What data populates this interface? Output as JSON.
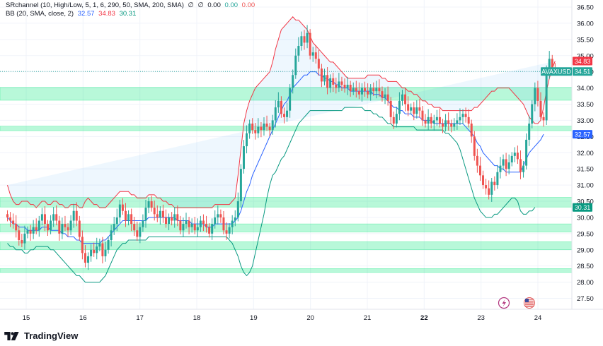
{
  "legend": {
    "indicator1_name": "SRchannel (10, High/Low, 5, 1, 6, 290, 50, SMA, 200, SMA)",
    "indicator1_marker1": "∅",
    "indicator1_marker2": "∅",
    "indicator1_v1": "0.00",
    "indicator1_v2": "0.00",
    "indicator1_v3": "0.00",
    "indicator2_name": "BB (20, SMA, close, 2)",
    "bb_basis": "32.57",
    "bb_upper": "34.83",
    "bb_lower": "30.31"
  },
  "brand": {
    "logo_text": "TradingView"
  },
  "colors": {
    "up": "#26a69a",
    "down": "#ef5350",
    "bb_basis": "#2962ff",
    "bb_upper": "#f23645",
    "bb_lower": "#089981",
    "bb_fill": "#2196f3",
    "sr_zone": "#00e676"
  },
  "chart_data": {
    "type": "candlestick",
    "symbol": "AVAXUSD",
    "ylim": [
      27.35,
      36.6
    ],
    "y_ticks": [
      "36.50",
      "36.00",
      "35.50",
      "35.00",
      "34.50",
      "34.00",
      "33.50",
      "33.00",
      "32.50",
      "32.00",
      "31.50",
      "31.00",
      "30.50",
      "30.00",
      "29.50",
      "29.00",
      "28.50",
      "28.00",
      "27.50"
    ],
    "x_ticks": [
      {
        "label": "15",
        "x": 15
      },
      {
        "label": "16",
        "x": 16
      },
      {
        "label": "17",
        "x": 17
      },
      {
        "label": "18",
        "x": 18
      },
      {
        "label": "19",
        "x": 19
      },
      {
        "label": "20",
        "x": 20
      },
      {
        "label": "21",
        "x": 21
      },
      {
        "label": "22",
        "x": 22
      },
      {
        "label": "23",
        "x": 23
      },
      {
        "label": "24",
        "x": 24
      }
    ],
    "price_labels": [
      {
        "text": "34.83",
        "value": 34.83,
        "color": "#f23645"
      },
      {
        "text": "AVAXUSD",
        "value": 34.51,
        "color": "#26a69a"
      },
      {
        "text": "34.51",
        "value": 34.51,
        "color": "#26a69a"
      },
      {
        "text": "32.57",
        "value": 32.57,
        "color": "#2962ff"
      },
      {
        "text": "30.31",
        "value": 30.31,
        "color": "#089981"
      }
    ],
    "sr_zones": [
      [
        33.62,
        34.02
      ],
      [
        32.68,
        32.82
      ],
      [
        30.32,
        30.62
      ],
      [
        29.55,
        29.8
      ],
      [
        29.0,
        29.25
      ],
      [
        28.3,
        28.42
      ]
    ],
    "last_price": 34.51,
    "candles_start_x": 14.67,
    "candles_step": 0.0507,
    "closes": [
      30.0,
      29.9,
      29.8,
      29.6,
      29.3,
      29.2,
      29.5,
      29.6,
      29.5,
      29.7,
      29.6,
      29.9,
      30.1,
      29.8,
      29.6,
      29.9,
      30.1,
      29.9,
      29.5,
      29.8,
      29.7,
      29.6,
      29.9,
      30.2,
      29.9,
      29.4,
      28.9,
      28.6,
      28.8,
      29.0,
      28.9,
      29.1,
      29.2,
      28.8,
      29.0,
      29.3,
      29.6,
      29.8,
      30.0,
      30.4,
      30.2,
      29.9,
      30.1,
      29.8,
      29.6,
      29.4,
      29.7,
      29.9,
      30.3,
      30.5,
      30.3,
      30.1,
      30.0,
      30.2,
      30.0,
      29.8,
      30.0,
      29.9,
      30.1,
      29.9,
      29.6,
      29.8,
      29.9,
      29.7,
      29.8,
      29.6,
      29.7,
      29.9,
      29.8,
      29.7,
      29.5,
      29.8,
      30.0,
      30.1,
      30.0,
      29.6,
      29.5,
      29.7,
      29.9,
      30.0,
      30.5,
      31.5,
      32.2,
      32.6,
      32.9,
      32.7,
      32.6,
      32.8,
      32.7,
      32.9,
      32.8,
      32.7,
      33.0,
      33.4,
      33.6,
      33.2,
      33.1,
      33.3,
      34.0,
      34.4,
      35.0,
      35.3,
      35.6,
      35.4,
      35.7,
      35.0,
      35.1,
      34.9,
      34.6,
      34.2,
      34.4,
      34.0,
      34.3,
      34.1,
      34.0,
      34.2,
      34.1,
      34.0,
      34.1,
      33.9,
      34.0,
      33.9,
      33.8,
      34.0,
      33.9,
      33.8,
      34.0,
      33.9,
      34.0,
      33.9,
      33.7,
      33.8,
      33.6,
      33.1,
      32.9,
      33.2,
      33.6,
      33.8,
      33.5,
      33.3,
      33.4,
      33.2,
      33.4,
      33.3,
      33.0,
      32.9,
      33.1,
      32.9,
      33.0,
      33.1,
      32.9,
      32.8,
      33.0,
      32.9,
      32.8,
      32.9,
      33.0,
      33.1,
      33.2,
      33.1,
      32.9,
      32.5,
      31.9,
      31.6,
      31.3,
      31.0,
      30.9,
      30.7,
      31.1,
      31.0,
      31.4,
      31.6,
      31.8,
      31.5,
      31.7,
      31.9,
      32.0,
      31.8,
      31.4,
      31.6,
      32.4,
      32.9,
      33.5,
      34.0,
      33.6,
      33.1,
      33.0,
      34.5,
      34.9,
      34.6,
      34.51
    ],
    "bb_upper": [
      31.0,
      30.7,
      30.5,
      30.4,
      30.4,
      30.5,
      30.5,
      30.5,
      30.4,
      30.4,
      30.3,
      30.4,
      30.5,
      30.5,
      30.4,
      30.4,
      30.5,
      30.5,
      30.4,
      30.4,
      30.3,
      30.3,
      30.4,
      30.4,
      30.4,
      30.3,
      30.3,
      30.5,
      30.6,
      30.5,
      30.4,
      30.4,
      30.3,
      30.3,
      30.3,
      30.4,
      30.5,
      30.6,
      30.7,
      30.8,
      30.8,
      30.8,
      30.8,
      30.7,
      30.7,
      30.6,
      30.6,
      30.6,
      30.6,
      30.7,
      30.7,
      30.7,
      30.6,
      30.6,
      30.5,
      30.5,
      30.4,
      30.4,
      30.3,
      30.3,
      30.3,
      30.3,
      30.3,
      30.3,
      30.3,
      30.3,
      30.3,
      30.3,
      30.3,
      30.3,
      30.3,
      30.3,
      30.4,
      30.4,
      30.4,
      30.4,
      30.4,
      30.4,
      30.5,
      30.6,
      31.3,
      32.1,
      32.9,
      33.3,
      33.6,
      33.8,
      34.0,
      34.1,
      34.2,
      34.3,
      34.4,
      34.5,
      34.8,
      35.2,
      35.5,
      35.8,
      35.9,
      36.0,
      36.1,
      36.2,
      36.1,
      36.1,
      36.0,
      35.9,
      35.8,
      35.6,
      35.4,
      35.3,
      35.2,
      35.1,
      35.0,
      34.9,
      34.8,
      34.8,
      34.7,
      34.6,
      34.5,
      34.4,
      34.3,
      34.3,
      34.3,
      34.3,
      34.3,
      34.3,
      34.3,
      34.4,
      34.4,
      34.4,
      34.4,
      34.4,
      34.3,
      34.3,
      34.2,
      34.2,
      34.2,
      34.2,
      34.1,
      34.0,
      34.0,
      33.9,
      33.9,
      33.8,
      33.8,
      33.7,
      33.6,
      33.6,
      33.5,
      33.5,
      33.4,
      33.4,
      33.4,
      33.3,
      33.3,
      33.3,
      33.3,
      33.3,
      33.3,
      33.3,
      33.3,
      33.3,
      33.3,
      33.3,
      33.4,
      33.4,
      33.5,
      33.6,
      33.7,
      33.8,
      33.9,
      33.9,
      34.0,
      34.0,
      34.0,
      34.0,
      34.0,
      33.9,
      33.8,
      33.7,
      33.6,
      33.5,
      33.3,
      33.1,
      33.0,
      32.9,
      32.9,
      33.0,
      33.4,
      33.9,
      34.3,
      34.6,
      34.83
    ],
    "bb_basis": [
      30.0,
      29.9,
      29.8,
      29.8,
      29.7,
      29.7,
      29.7,
      29.6,
      29.6,
      29.6,
      29.6,
      29.6,
      29.7,
      29.7,
      29.7,
      29.6,
      29.6,
      29.6,
      29.6,
      29.5,
      29.5,
      29.4,
      29.4,
      29.4,
      29.3,
      29.3,
      29.2,
      29.2,
      29.2,
      29.2,
      29.2,
      29.2,
      29.2,
      29.3,
      29.3,
      29.4,
      29.5,
      29.6,
      29.7,
      29.8,
      29.9,
      29.9,
      29.9,
      29.9,
      29.9,
      29.9,
      29.9,
      29.9,
      29.9,
      30.0,
      30.0,
      30.0,
      30.0,
      30.0,
      30.0,
      30.0,
      30.0,
      30.0,
      30.0,
      29.9,
      29.9,
      29.9,
      29.9,
      29.9,
      29.8,
      29.8,
      29.8,
      29.8,
      29.8,
      29.7,
      29.7,
      29.7,
      29.8,
      29.8,
      29.8,
      29.8,
      29.8,
      29.8,
      29.8,
      29.9,
      30.0,
      30.2,
      30.5,
      30.8,
      31.0,
      31.3,
      31.5,
      31.7,
      31.9,
      32.1,
      32.3,
      32.5,
      32.7,
      32.9,
      33.1,
      33.3,
      33.5,
      33.6,
      33.8,
      34.0,
      34.1,
      34.2,
      34.3,
      34.4,
      34.4,
      34.5,
      34.5,
      34.5,
      34.4,
      34.4,
      34.3,
      34.3,
      34.2,
      34.2,
      34.1,
      34.1,
      34.0,
      34.0,
      34.0,
      33.9,
      33.9,
      33.9,
      33.9,
      33.9,
      33.9,
      33.9,
      33.9,
      33.8,
      33.8,
      33.8,
      33.7,
      33.7,
      33.6,
      33.5,
      33.4,
      33.4,
      33.3,
      33.3,
      33.2,
      33.2,
      33.2,
      33.1,
      33.1,
      33.1,
      33.0,
      33.0,
      33.0,
      33.0,
      32.9,
      32.9,
      32.9,
      32.9,
      32.9,
      32.9,
      32.9,
      32.9,
      32.9,
      32.9,
      32.9,
      32.8,
      32.7,
      32.6,
      32.5,
      32.3,
      32.2,
      32.0,
      31.9,
      31.8,
      31.7,
      31.6,
      31.6,
      31.5,
      31.5,
      31.4,
      31.4,
      31.4,
      31.4,
      31.4,
      31.4,
      31.6,
      31.8,
      32.0,
      32.1,
      32.2,
      32.3,
      32.4,
      32.57
    ],
    "bb_lower": [
      29.2,
      29.1,
      29.1,
      29.0,
      29.0,
      29.0,
      28.9,
      28.9,
      29.0,
      29.0,
      29.1,
      29.1,
      29.1,
      29.1,
      29.1,
      29.0,
      29.0,
      28.9,
      28.8,
      28.7,
      28.6,
      28.5,
      28.4,
      28.3,
      28.2,
      28.2,
      28.1,
      28.0,
      28.0,
      28.0,
      28.0,
      28.0,
      28.0,
      28.1,
      28.2,
      28.4,
      28.6,
      28.8,
      29.0,
      29.1,
      29.2,
      29.2,
      29.3,
      29.3,
      29.3,
      29.3,
      29.3,
      29.3,
      29.3,
      29.4,
      29.4,
      29.4,
      29.4,
      29.4,
      29.4,
      29.4,
      29.4,
      29.4,
      29.4,
      29.4,
      29.4,
      29.4,
      29.4,
      29.4,
      29.4,
      29.4,
      29.4,
      29.4,
      29.4,
      29.4,
      29.4,
      29.4,
      29.4,
      29.4,
      29.4,
      29.4,
      29.4,
      29.3,
      29.2,
      29.0,
      28.8,
      28.5,
      28.3,
      28.2,
      28.3,
      28.5,
      28.9,
      29.3,
      29.7,
      30.1,
      30.6,
      31.0,
      31.3,
      31.4,
      31.6,
      31.8,
      31.9,
      32.1,
      32.3,
      32.5,
      32.7,
      32.9,
      33.0,
      33.1,
      33.2,
      33.3,
      33.3,
      33.3,
      33.3,
      33.3,
      33.3,
      33.3,
      33.3,
      33.3,
      33.3,
      33.3,
      33.3,
      33.4,
      33.4,
      33.4,
      33.4,
      33.4,
      33.4,
      33.4,
      33.3,
      33.3,
      33.3,
      33.2,
      33.2,
      33.1,
      33.1,
      33.0,
      32.9,
      32.9,
      32.8,
      32.8,
      32.8,
      32.8,
      32.8,
      32.8,
      32.8,
      32.8,
      32.7,
      32.7,
      32.7,
      32.7,
      32.7,
      32.7,
      32.7,
      32.7,
      32.7,
      32.7,
      32.6,
      32.6,
      32.5,
      32.4,
      32.3,
      32.1,
      31.8,
      31.5,
      31.2,
      30.9,
      30.6,
      30.4,
      30.2,
      30.1,
      30.0,
      30.0,
      30.0,
      30.1,
      30.1,
      30.2,
      30.3,
      30.4,
      30.5,
      30.6,
      30.6,
      30.5,
      30.2,
      30.1,
      30.1,
      30.2,
      30.2,
      30.31
    ]
  }
}
